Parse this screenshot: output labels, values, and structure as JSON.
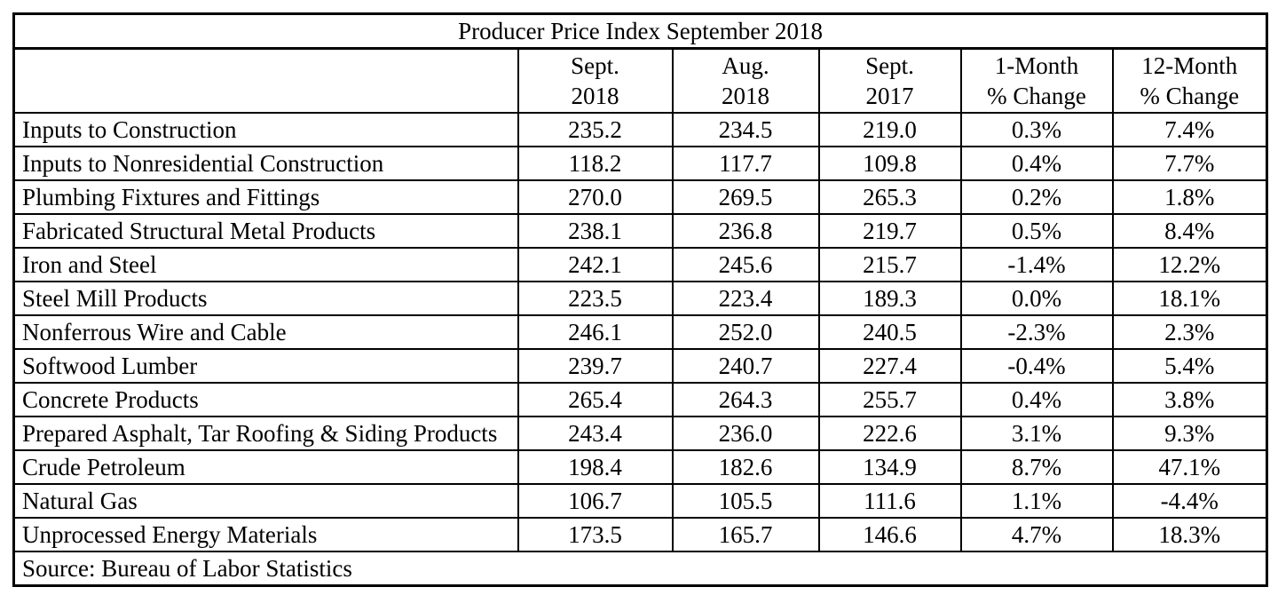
{
  "chart_data": {
    "type": "table",
    "title": "Producer Price Index September 2018",
    "columns": [
      {
        "line1": "",
        "line2": ""
      },
      {
        "line1": "Sept.",
        "line2": "2018"
      },
      {
        "line1": "Aug.",
        "line2": "2018"
      },
      {
        "line1": "Sept.",
        "line2": "2017"
      },
      {
        "line1": "1-Month",
        "line2": "% Change"
      },
      {
        "line1": "12-Month",
        "line2": "% Change"
      }
    ],
    "rows": [
      {
        "label": "Inputs to Construction",
        "values": [
          "235.2",
          "234.5",
          "219.0",
          "0.3%",
          "7.4%"
        ]
      },
      {
        "label": "Inputs to Nonresidential Construction",
        "values": [
          "118.2",
          "117.7",
          "109.8",
          "0.4%",
          "7.7%"
        ]
      },
      {
        "label": "Plumbing Fixtures and Fittings",
        "values": [
          "270.0",
          "269.5",
          "265.3",
          "0.2%",
          "1.8%"
        ]
      },
      {
        "label": "Fabricated Structural Metal Products",
        "values": [
          "238.1",
          "236.8",
          "219.7",
          "0.5%",
          "8.4%"
        ]
      },
      {
        "label": "Iron and Steel",
        "values": [
          "242.1",
          "245.6",
          "215.7",
          "-1.4%",
          "12.2%"
        ]
      },
      {
        "label": "Steel Mill Products",
        "values": [
          "223.5",
          "223.4",
          "189.3",
          "0.0%",
          "18.1%"
        ]
      },
      {
        "label": "Nonferrous Wire and Cable",
        "values": [
          "246.1",
          "252.0",
          "240.5",
          "-2.3%",
          "2.3%"
        ]
      },
      {
        "label": "Softwood Lumber",
        "values": [
          "239.7",
          "240.7",
          "227.4",
          "-0.4%",
          "5.4%"
        ]
      },
      {
        "label": "Concrete Products",
        "values": [
          "265.4",
          "264.3",
          "255.7",
          "0.4%",
          "3.8%"
        ]
      },
      {
        "label": "Prepared Asphalt, Tar Roofing & Siding Products",
        "values": [
          "243.4",
          "236.0",
          "222.6",
          "3.1%",
          "9.3%"
        ]
      },
      {
        "label": "Crude Petroleum",
        "values": [
          "198.4",
          "182.6",
          "134.9",
          "8.7%",
          "47.1%"
        ]
      },
      {
        "label": "Natural Gas",
        "values": [
          "106.7",
          "105.5",
          "111.6",
          "1.1%",
          "-4.4%"
        ]
      },
      {
        "label": "Unprocessed Energy Materials",
        "values": [
          "173.5",
          "165.7",
          "146.6",
          "4.7%",
          "18.3%"
        ]
      }
    ],
    "source": "Source: Bureau of Labor Statistics",
    "colors": {
      "text": "#000000",
      "border": "#000000",
      "background": "#ffffff"
    },
    "layout": {
      "grid": "full-borders",
      "title_position": "top-center",
      "label_alignment": "left",
      "value_alignment": "center"
    }
  }
}
